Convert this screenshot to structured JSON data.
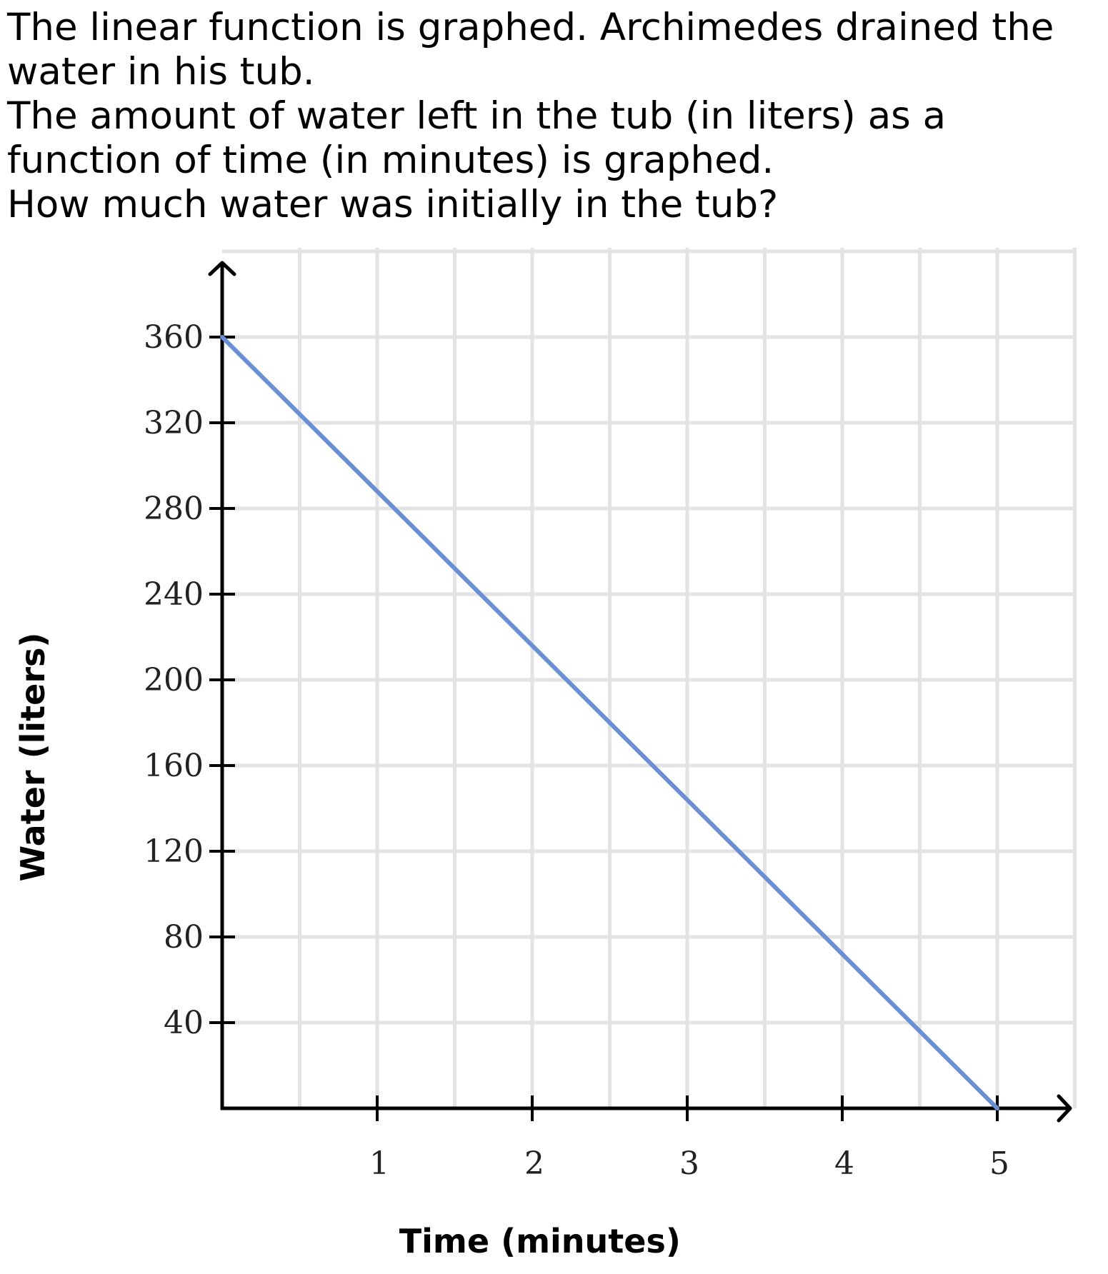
{
  "question": {
    "line1": "The linear function is graphed. Archimedes drained the water in his tub.",
    "line2": "The amount of water left in the tub (in liters) as a function of time (in minutes) is graphed.",
    "line3": "How much water was initially in the tub?"
  },
  "chart_data": {
    "type": "line",
    "title": "",
    "xlabel": "Time (minutes)",
    "ylabel": "Water (liters)",
    "xlim": [
      0,
      5.5
    ],
    "ylim": [
      0,
      400
    ],
    "x_ticks": [
      1,
      2,
      3,
      4,
      5
    ],
    "y_ticks": [
      40,
      80,
      120,
      160,
      200,
      240,
      280,
      320,
      360
    ],
    "x_tick_labels": [
      "1",
      "2",
      "3",
      "4",
      "5"
    ],
    "y_tick_labels": [
      "40",
      "80",
      "120",
      "160",
      "200",
      "240",
      "280",
      "320",
      "360"
    ],
    "x_grid_step": 0.5,
    "y_grid_step": 40,
    "grid": true,
    "series": [
      {
        "x": [
          0,
          5
        ],
        "y": [
          360,
          0
        ],
        "color": "#6b8fd4"
      }
    ]
  }
}
